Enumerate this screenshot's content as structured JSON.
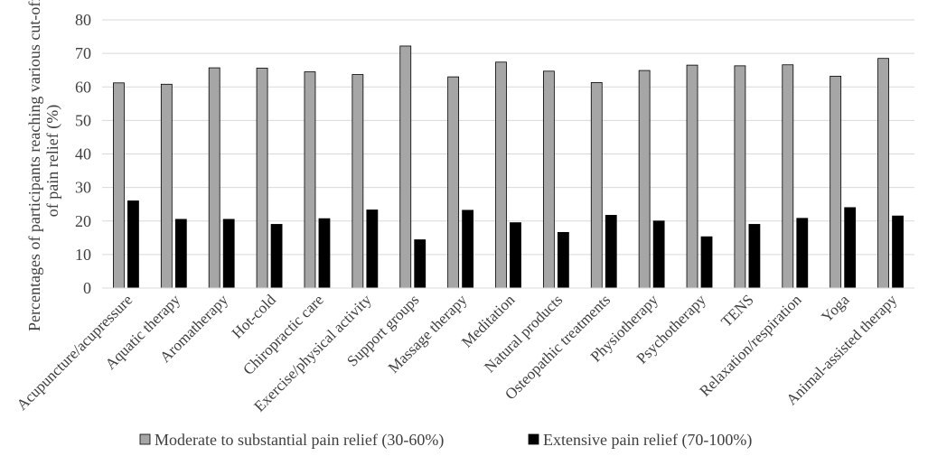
{
  "chart_data": {
    "type": "bar",
    "title": "",
    "xlabel": "",
    "ylabel_lines": [
      "Percentages of participants reaching various cut-offs",
      "of pain relief (%)"
    ],
    "ylim": [
      0,
      80
    ],
    "yticks": [
      0,
      10,
      20,
      30,
      40,
      50,
      60,
      70,
      80
    ],
    "grid": true,
    "legend_position": "bottom",
    "categories": [
      "Acupuncture/acupressure",
      "Aquatic therapy",
      "Aromatherapy",
      "Hot-cold",
      "Chiropractic care",
      "Exercise/physical activity",
      "Support groups",
      "Massage therapy",
      "Meditation",
      "Natural products",
      "Osteopathic treatments",
      "Physiotherapy",
      "Psychotherapy",
      "TENS",
      "Relaxation/respiration",
      "Yoga",
      "Animal-assisted therapy"
    ],
    "series": [
      {
        "name": "Moderate to substantial pain relief (30-60%)",
        "color": "#a6a6a6",
        "values": [
          61.2,
          60.8,
          65.7,
          65.6,
          64.5,
          63.7,
          72.2,
          63.0,
          67.4,
          64.7,
          61.3,
          64.9,
          66.5,
          66.3,
          66.6,
          63.2,
          68.5
        ]
      },
      {
        "name": "Extensive pain relief (70-100%)",
        "color": "#000000",
        "values": [
          26.0,
          20.5,
          20.5,
          19.0,
          20.7,
          23.3,
          14.4,
          23.2,
          19.5,
          16.6,
          21.7,
          20.0,
          15.3,
          19.0,
          20.8,
          24.0,
          21.5
        ]
      }
    ]
  }
}
